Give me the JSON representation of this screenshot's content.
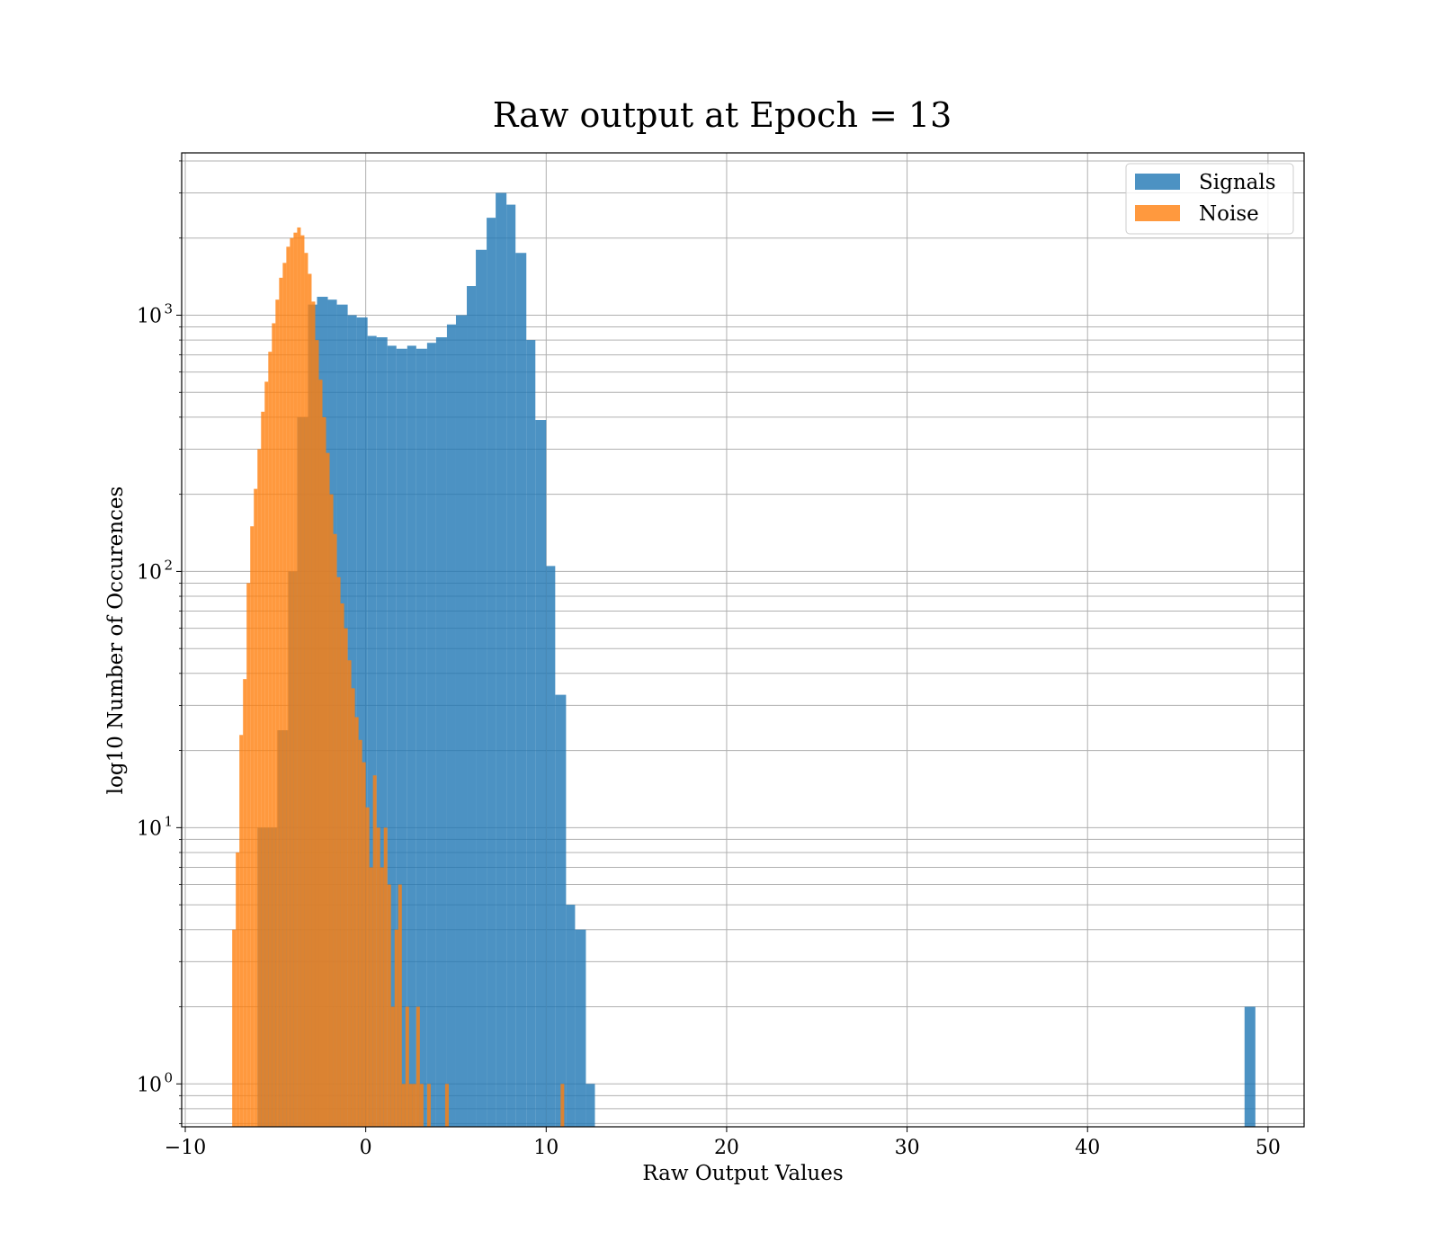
{
  "chart_data": {
    "type": "bar",
    "title": "Raw output at Epoch = 13",
    "xlabel": "Raw Output Values",
    "ylabel": "log10 Number of Occurences",
    "xlim": [
      -10.2,
      52
    ],
    "ylim": [
      0.68,
      4300
    ],
    "yscale": "log",
    "grid": true,
    "legend_position": "top-right",
    "x_ticks": [
      {
        "value": -10,
        "label": "−10"
      },
      {
        "value": 0,
        "label": "0"
      },
      {
        "value": 10,
        "label": "10"
      },
      {
        "value": 20,
        "label": "20"
      },
      {
        "value": 30,
        "label": "30"
      },
      {
        "value": 40,
        "label": "40"
      },
      {
        "value": 50,
        "label": "50"
      }
    ],
    "y_ticks": [
      {
        "value": 1,
        "base": "10",
        "exp": "0"
      },
      {
        "value": 10,
        "base": "10",
        "exp": "1"
      },
      {
        "value": 100,
        "base": "10",
        "exp": "2"
      },
      {
        "value": 1000,
        "base": "10",
        "exp": "3"
      }
    ],
    "series": [
      {
        "name": "Signals",
        "color": "#1f77b4",
        "opacity": 0.8,
        "bins": [
          [
            -6,
            -4.9,
            10
          ],
          [
            -4.9,
            -4.3,
            24
          ],
          [
            -4.3,
            -3.8,
            100
          ],
          [
            -3.8,
            -3.2,
            400
          ],
          [
            -3.2,
            -2.7,
            1100
          ],
          [
            -2.7,
            -2.1,
            1180
          ],
          [
            -2.1,
            -1.6,
            1150
          ],
          [
            -1.6,
            -1.0,
            1100
          ],
          [
            -1.0,
            -0.5,
            1000
          ],
          [
            -0.5,
            0.1,
            980
          ],
          [
            0.1,
            0.6,
            830
          ],
          [
            0.6,
            1.2,
            820
          ],
          [
            1.2,
            1.7,
            760
          ],
          [
            1.7,
            2.3,
            740
          ],
          [
            2.3,
            2.8,
            760
          ],
          [
            2.8,
            3.4,
            740
          ],
          [
            3.4,
            3.9,
            780
          ],
          [
            3.9,
            4.5,
            820
          ],
          [
            4.5,
            5.0,
            920
          ],
          [
            5.0,
            5.6,
            1000
          ],
          [
            5.6,
            6.1,
            1300
          ],
          [
            6.1,
            6.7,
            1800
          ],
          [
            6.7,
            7.2,
            2400
          ],
          [
            7.2,
            7.8,
            3000
          ],
          [
            7.8,
            8.3,
            2700
          ],
          [
            8.3,
            8.9,
            1750
          ],
          [
            8.9,
            9.4,
            800
          ],
          [
            9.4,
            10.0,
            390
          ],
          [
            10.0,
            10.5,
            105
          ],
          [
            10.5,
            11.1,
            33
          ],
          [
            11.1,
            11.6,
            5
          ],
          [
            11.6,
            12.2,
            4
          ],
          [
            12.2,
            12.7,
            1
          ],
          [
            48.7,
            49.3,
            2
          ]
        ]
      },
      {
        "name": "Noise",
        "color": "#ff7f0e",
        "opacity": 0.8,
        "bins": [
          [
            -7.4,
            -7.2,
            4
          ],
          [
            -7.2,
            -7.0,
            8
          ],
          [
            -7.0,
            -6.8,
            23
          ],
          [
            -6.8,
            -6.6,
            38
          ],
          [
            -6.6,
            -6.4,
            90
          ],
          [
            -6.4,
            -6.2,
            150
          ],
          [
            -6.2,
            -6.0,
            210
          ],
          [
            -6.0,
            -5.8,
            300
          ],
          [
            -5.8,
            -5.6,
            420
          ],
          [
            -5.6,
            -5.4,
            550
          ],
          [
            -5.4,
            -5.2,
            720
          ],
          [
            -5.2,
            -5.0,
            930
          ],
          [
            -5.0,
            -4.8,
            1150
          ],
          [
            -4.8,
            -4.6,
            1400
          ],
          [
            -4.6,
            -4.4,
            1600
          ],
          [
            -4.4,
            -4.2,
            1850
          ],
          [
            -4.2,
            -4.0,
            2000
          ],
          [
            -4.0,
            -3.8,
            2100
          ],
          [
            -3.8,
            -3.6,
            2200
          ],
          [
            -3.6,
            -3.4,
            2050
          ],
          [
            -3.4,
            -3.2,
            1750
          ],
          [
            -3.2,
            -3.0,
            1450
          ],
          [
            -3.0,
            -2.8,
            1130
          ],
          [
            -2.8,
            -2.6,
            800
          ],
          [
            -2.6,
            -2.4,
            560
          ],
          [
            -2.4,
            -2.2,
            400
          ],
          [
            -2.2,
            -2.0,
            290
          ],
          [
            -2.0,
            -1.8,
            200
          ],
          [
            -1.8,
            -1.6,
            140
          ],
          [
            -1.6,
            -1.4,
            95
          ],
          [
            -1.4,
            -1.2,
            75
          ],
          [
            -1.2,
            -1.0,
            60
          ],
          [
            -1.0,
            -0.8,
            45
          ],
          [
            -0.8,
            -0.6,
            35
          ],
          [
            -0.6,
            -0.4,
            27
          ],
          [
            -0.4,
            -0.2,
            22
          ],
          [
            -0.2,
            0.0,
            18
          ],
          [
            0.0,
            0.2,
            12
          ],
          [
            0.2,
            0.4,
            7
          ],
          [
            0.4,
            0.6,
            16
          ],
          [
            0.6,
            0.8,
            10
          ],
          [
            0.8,
            1.0,
            7
          ],
          [
            1.0,
            1.2,
            10
          ],
          [
            1.2,
            1.4,
            6
          ],
          [
            1.4,
            1.6,
            2
          ],
          [
            1.6,
            1.8,
            4
          ],
          [
            1.8,
            2.0,
            6
          ],
          [
            2.0,
            2.2,
            1
          ],
          [
            2.2,
            2.4,
            2
          ],
          [
            2.4,
            2.6,
            1
          ],
          [
            2.6,
            2.8,
            1
          ],
          [
            2.8,
            3.0,
            2
          ],
          [
            3.0,
            3.2,
            1
          ],
          [
            3.4,
            3.6,
            1
          ],
          [
            4.4,
            4.6,
            1
          ],
          [
            10.8,
            11.0,
            1
          ]
        ]
      }
    ]
  }
}
